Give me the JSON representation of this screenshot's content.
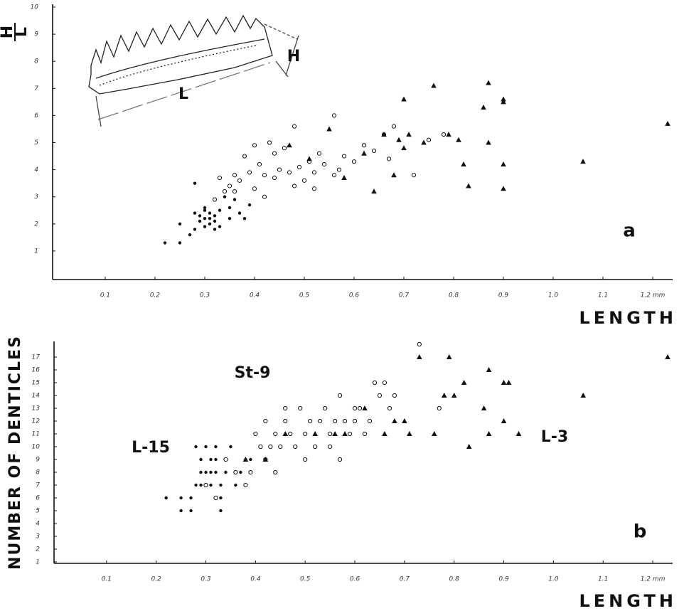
{
  "chart_data": [
    {
      "type": "scatter",
      "ylabel": {
        "numerator": "L",
        "denominator": "H"
      },
      "xlabel": "LENGTH",
      "panel_label": "a",
      "inset_labels": [
        "L",
        "H"
      ],
      "xlim": [
        0,
        1.24
      ],
      "ylim": [
        0,
        10
      ],
      "xticks": [
        0.1,
        0.2,
        0.3,
        0.4,
        0.5,
        0.6,
        0.7,
        0.8,
        0.9,
        {
          "value": 1,
          "label": "1.0"
        },
        1.1,
        {
          "value": 1.2,
          "label": "1.2 mm"
        }
      ],
      "yticks": [
        1,
        2,
        3,
        4,
        5,
        6,
        7,
        8,
        9,
        10
      ],
      "series": [
        {
          "marker": "filled-circle",
          "color": "#111111",
          "x": [
            0.22,
            0.25,
            0.25,
            0.27,
            0.28,
            0.28,
            0.29,
            0.29,
            0.3,
            0.3,
            0.3,
            0.31,
            0.31,
            0.31,
            0.32,
            0.32,
            0.32,
            0.33,
            0.33,
            0.34,
            0.35,
            0.35,
            0.36,
            0.37,
            0.38,
            0.39,
            0.28,
            0.3
          ],
          "values": [
            1.3,
            1.3,
            2.0,
            1.6,
            1.8,
            2.4,
            2.3,
            2.1,
            2.2,
            2.6,
            1.9,
            2.2,
            2.0,
            2.4,
            2.3,
            1.8,
            2.1,
            2.5,
            1.9,
            3.0,
            2.6,
            2.2,
            2.9,
            2.4,
            2.2,
            2.7,
            3.5,
            2.5
          ]
        },
        {
          "marker": "open-circle",
          "color": "#111111",
          "x": [
            0.32,
            0.33,
            0.34,
            0.35,
            0.36,
            0.37,
            0.38,
            0.39,
            0.4,
            0.41,
            0.42,
            0.43,
            0.44,
            0.45,
            0.46,
            0.47,
            0.48,
            0.49,
            0.5,
            0.51,
            0.52,
            0.53,
            0.54,
            0.56,
            0.57,
            0.58,
            0.6,
            0.62,
            0.64,
            0.66,
            0.67,
            0.68,
            0.72,
            0.75,
            0.78,
            0.4,
            0.44,
            0.48,
            0.52,
            0.56,
            0.36,
            0.42
          ],
          "values": [
            2.9,
            3.7,
            3.2,
            3.4,
            3.8,
            3.6,
            4.5,
            3.9,
            3.3,
            4.2,
            3.8,
            5.0,
            3.7,
            4.0,
            4.8,
            3.9,
            5.6,
            4.1,
            3.6,
            4.3,
            3.9,
            4.6,
            4.2,
            6.0,
            4.0,
            4.5,
            4.3,
            4.9,
            4.7,
            5.3,
            4.4,
            5.6,
            3.8,
            5.1,
            5.3,
            4.9,
            4.6,
            3.4,
            3.3,
            3.8,
            3.2,
            3.0
          ]
        },
        {
          "marker": "triangle",
          "color": "#111111",
          "x": [
            0.47,
            0.51,
            0.55,
            0.58,
            0.62,
            0.64,
            0.66,
            0.68,
            0.69,
            0.7,
            0.7,
            0.71,
            0.74,
            0.76,
            0.79,
            0.81,
            0.82,
            0.83,
            0.86,
            0.87,
            0.87,
            0.9,
            0.9,
            0.9,
            0.9,
            1.06,
            1.23
          ],
          "values": [
            4.9,
            4.4,
            5.5,
            3.7,
            4.6,
            3.2,
            5.3,
            3.8,
            5.1,
            4.8,
            6.6,
            5.3,
            5.0,
            7.1,
            5.3,
            5.1,
            4.2,
            3.4,
            6.3,
            7.2,
            5.0,
            6.6,
            6.5,
            4.2,
            3.3,
            4.3,
            5.7
          ]
        }
      ]
    },
    {
      "type": "scatter",
      "ylabel": "NUMBER OF DENTICLES",
      "xlabel": "LENGTH",
      "panel_label": "b",
      "xlim": [
        0,
        1.24
      ],
      "ylim": [
        1,
        18
      ],
      "xticks": [
        0.1,
        0.2,
        0.3,
        0.4,
        0.5,
        0.6,
        0.7,
        0.8,
        0.9,
        {
          "value": 1,
          "label": "1.0"
        },
        1.1,
        {
          "value": 1.2,
          "label": "1.2 mm"
        }
      ],
      "yticks": [
        1,
        2,
        3,
        4,
        5,
        6,
        7,
        8,
        9,
        10,
        11,
        12,
        13,
        14,
        15,
        16,
        17
      ],
      "series": [
        {
          "name": "L-15",
          "marker": "filled-circle",
          "color": "#111111",
          "x": [
            0.22,
            0.22,
            0.25,
            0.25,
            0.27,
            0.27,
            0.28,
            0.28,
            0.29,
            0.29,
            0.3,
            0.3,
            0.3,
            0.31,
            0.31,
            0.31,
            0.32,
            0.32,
            0.32,
            0.33,
            0.33,
            0.34,
            0.34,
            0.35,
            0.36,
            0.37,
            0.38,
            0.39,
            0.29,
            0.33
          ],
          "values": [
            6,
            6,
            5,
            6,
            5,
            6,
            7,
            10,
            7,
            9,
            8,
            7,
            10,
            9,
            7,
            8,
            10,
            8,
            9,
            5,
            7,
            8,
            9,
            10,
            7,
            8,
            9,
            9,
            8,
            6
          ]
        },
        {
          "name": "St-9",
          "marker": "open-circle",
          "color": "#111111",
          "x": [
            0.3,
            0.32,
            0.34,
            0.36,
            0.38,
            0.39,
            0.4,
            0.41,
            0.42,
            0.43,
            0.44,
            0.45,
            0.46,
            0.46,
            0.47,
            0.48,
            0.49,
            0.5,
            0.51,
            0.52,
            0.53,
            0.54,
            0.55,
            0.56,
            0.57,
            0.57,
            0.58,
            0.59,
            0.6,
            0.61,
            0.62,
            0.63,
            0.64,
            0.65,
            0.66,
            0.67,
            0.68,
            0.73,
            0.77,
            0.5,
            0.44,
            0.55,
            0.6,
            0.42
          ],
          "values": [
            7,
            6,
            9,
            8,
            7,
            8,
            11,
            10,
            9,
            10,
            11,
            10,
            13,
            12,
            11,
            10,
            13,
            11,
            12,
            10,
            12,
            13,
            11,
            12,
            14,
            9,
            12,
            11,
            12,
            13,
            11,
            12,
            15,
            14,
            15,
            13,
            14,
            18,
            13,
            9,
            8,
            10,
            13,
            12
          ]
        },
        {
          "name": "L-3",
          "marker": "triangle",
          "color": "#111111",
          "x": [
            0.38,
            0.42,
            0.46,
            0.52,
            0.56,
            0.58,
            0.62,
            0.66,
            0.68,
            0.7,
            0.71,
            0.73,
            0.76,
            0.78,
            0.79,
            0.8,
            0.82,
            0.83,
            0.86,
            0.87,
            0.87,
            0.9,
            0.9,
            0.91,
            0.93,
            1.06,
            1.23
          ],
          "values": [
            9,
            9,
            11,
            11,
            11,
            11,
            13,
            11,
            12,
            12,
            11,
            17,
            11,
            14,
            17,
            14,
            15,
            10,
            13,
            16,
            11,
            12,
            15,
            15,
            11,
            14,
            17
          ]
        }
      ]
    }
  ]
}
